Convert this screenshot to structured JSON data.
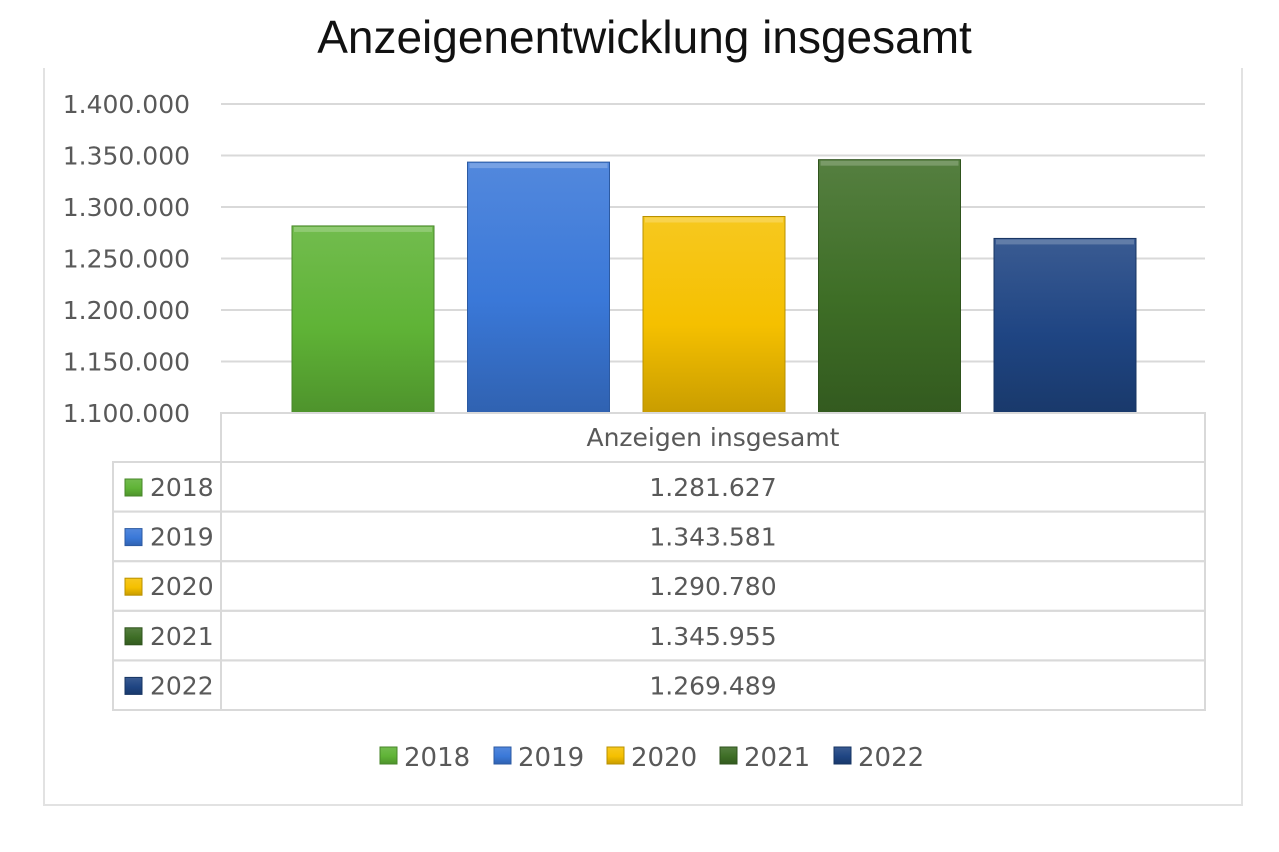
{
  "title": "Anzeigenentwicklung insgesamt",
  "chart_data": {
    "type": "bar",
    "title": "Anzeigenentwicklung insgesamt",
    "categories": [
      "Anzeigen insgesamt"
    ],
    "series": [
      {
        "name": "2018",
        "values": [
          1281627
        ],
        "label": "1.281.627",
        "color": "#5fb336"
      },
      {
        "name": "2019",
        "values": [
          1343581
        ],
        "label": "1.343.581",
        "color": "#3a78d8"
      },
      {
        "name": "2020",
        "values": [
          1290780
        ],
        "label": "1.290.780",
        "color": "#f5c000"
      },
      {
        "name": "2021",
        "values": [
          1345955
        ],
        "label": "1.345.955",
        "color": "#3e6e26"
      },
      {
        "name": "2022",
        "values": [
          1269489
        ],
        "label": "1.269.489",
        "color": "#1f4583"
      }
    ],
    "yticks": [
      1100000,
      1150000,
      1200000,
      1250000,
      1300000,
      1350000,
      1400000
    ],
    "ytick_labels": [
      "1.100.000",
      "1.150.000",
      "1.200.000",
      "1.250.000",
      "1.300.000",
      "1.350.000",
      "1.400.000"
    ],
    "ylim": [
      1100000,
      1400000
    ],
    "grid": true,
    "data_table": true,
    "legend": "bottom"
  }
}
